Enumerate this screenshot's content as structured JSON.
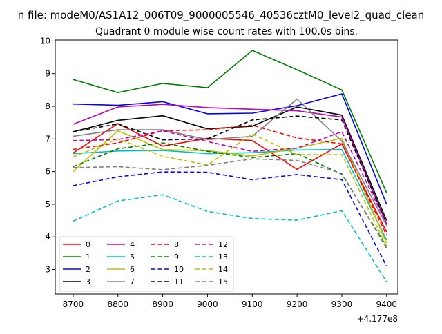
{
  "figure": {
    "suptitle": "n file: modeM0/AS1A12_006T09_9000005546_40536cztM0_level2_quad_clean",
    "title": "Quadrant 0 module wise count rates with 100.0s bins.",
    "offset_label": "+4.177e8"
  },
  "chart_data": {
    "type": "line",
    "title": "Quadrant 0 module wise count rates with 100.0s bins.",
    "xlabel": "",
    "ylabel": "",
    "x_offset": 417700000,
    "x": [
      8700,
      8800,
      8900,
      9000,
      9100,
      9200,
      9300,
      9400
    ],
    "xlim": [
      8660,
      9425
    ],
    "ylim": [
      2.25,
      10.03
    ],
    "xticks": [
      8700,
      8800,
      8900,
      9000,
      9100,
      9200,
      9300,
      9400
    ],
    "yticks": [
      3,
      4,
      5,
      6,
      7,
      8,
      9,
      10
    ],
    "grid": false,
    "legend": {
      "placement": "lower-left",
      "columns": 4
    },
    "series": [
      {
        "name": "0",
        "color": "#ff0000",
        "dash": "solid",
        "values": [
          6.57,
          7.47,
          6.78,
          7.02,
          6.95,
          6.07,
          6.85,
          4.15
        ]
      },
      {
        "name": "1",
        "color": "#008000",
        "dash": "solid",
        "values": [
          8.82,
          8.42,
          8.7,
          8.57,
          9.71,
          9.12,
          8.5,
          5.35
        ]
      },
      {
        "name": "2",
        "color": "#0000ff",
        "dash": "solid",
        "values": [
          8.07,
          8.03,
          8.14,
          7.77,
          7.79,
          8.02,
          8.38,
          5.0
        ]
      },
      {
        "name": "3",
        "color": "#000000",
        "dash": "solid",
        "values": [
          7.22,
          7.57,
          7.71,
          7.31,
          7.39,
          7.98,
          7.73,
          4.5
        ]
      },
      {
        "name": "4",
        "color": "#bf00bf",
        "dash": "solid",
        "values": [
          7.45,
          7.98,
          8.06,
          7.96,
          7.91,
          7.86,
          7.67,
          4.4
        ]
      },
      {
        "name": "5",
        "color": "#00bfbf",
        "dash": "solid",
        "values": [
          6.55,
          6.63,
          6.65,
          6.55,
          6.58,
          6.66,
          6.68,
          3.9
        ]
      },
      {
        "name": "6",
        "color": "#bfbf00",
        "dash": "solid",
        "values": [
          6.0,
          7.25,
          6.67,
          6.64,
          6.48,
          6.72,
          7.02,
          3.8
        ]
      },
      {
        "name": "7",
        "color": "#808080",
        "dash": "solid",
        "values": [
          7.08,
          7.28,
          7.28,
          6.98,
          7.08,
          8.22,
          6.93,
          4.35
        ]
      },
      {
        "name": "8",
        "color": "#ff0000",
        "dash": "dashed",
        "values": [
          6.68,
          6.88,
          7.25,
          7.28,
          7.42,
          7.03,
          6.85,
          4.05
        ]
      },
      {
        "name": "9",
        "color": "#008000",
        "dash": "dashed",
        "values": [
          6.15,
          6.7,
          6.88,
          6.62,
          6.43,
          6.55,
          5.92,
          3.7
        ]
      },
      {
        "name": "10",
        "color": "#0000ff",
        "dash": "dashed",
        "values": [
          5.57,
          5.84,
          5.99,
          5.98,
          5.75,
          5.91,
          5.75,
          3.1
        ]
      },
      {
        "name": "11",
        "color": "#000000",
        "dash": "dashed",
        "values": [
          7.22,
          7.46,
          6.97,
          7.0,
          7.58,
          7.7,
          7.58,
          4.4
        ]
      },
      {
        "name": "12",
        "color": "#bf00bf",
        "dash": "dashed",
        "values": [
          6.95,
          6.98,
          7.25,
          6.92,
          6.62,
          6.72,
          7.22,
          4.4
        ]
      },
      {
        "name": "13",
        "color": "#00bfbf",
        "dash": "dashed",
        "values": [
          4.48,
          5.1,
          5.29,
          4.78,
          4.56,
          4.51,
          4.8,
          2.62
        ]
      },
      {
        "name": "14",
        "color": "#bfbf00",
        "dash": "dashed",
        "values": [
          6.45,
          7.0,
          6.47,
          6.2,
          7.15,
          6.52,
          6.52,
          3.7
        ]
      },
      {
        "name": "15",
        "color": "#808080",
        "dash": "dashed",
        "values": [
          6.12,
          6.15,
          6.06,
          6.19,
          6.39,
          6.34,
          5.95,
          3.65
        ]
      }
    ]
  }
}
